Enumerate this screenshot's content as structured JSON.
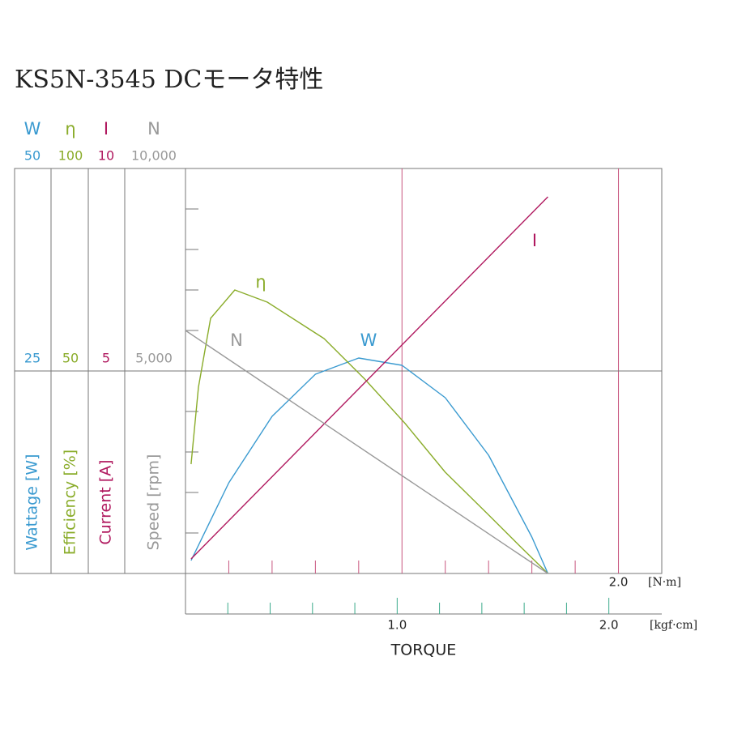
{
  "chart_data": {
    "type": "line",
    "title": "KS5N-3545 DCモータ特性",
    "xlabel": "TORQUE",
    "x_axes": [
      {
        "unit": "[N·m]",
        "color": "#c8557e",
        "xlim": [
          0,
          2.2
        ],
        "xticks": [
          {
            "value": 2,
            "label": "2.0"
          }
        ],
        "minor_xticks": [
          0.2,
          0.4,
          0.6,
          0.8,
          1.2,
          1.4,
          1.6,
          1.8
        ],
        "grid": [
          1,
          2
        ]
      },
      {
        "unit": "[kgf·cm]",
        "color": "#3aaa8a",
        "xlim": [
          0,
          2.25
        ],
        "xticks": [
          {
            "value": 1,
            "label": "1.0"
          },
          {
            "value": 2,
            "label": "2.0"
          }
        ],
        "minor_xticks": [
          0.2,
          0.4,
          0.6,
          0.8,
          1.2,
          1.4,
          1.6,
          1.8
        ]
      }
    ],
    "series": [
      {
        "name": "W",
        "label": "Wattage [W]",
        "color": "#3a9ad0",
        "ylim": [
          0,
          50
        ],
        "yticks": [
          25,
          50
        ],
        "minor_yticks": [
          5,
          10,
          15,
          20,
          30,
          35,
          40,
          45
        ],
        "x": [
          0.026,
          0.2,
          0.4,
          0.6,
          0.8,
          1.0,
          1.2,
          1.4,
          1.6,
          1.674
        ],
        "values": [
          1.6,
          11.2,
          19.4,
          24.6,
          26.6,
          25.7,
          21.7,
          14.6,
          4.5,
          0
        ]
      },
      {
        "name": "η",
        "label": "Efficiency [%]",
        "color": "#8aac2a",
        "ylim": [
          0,
          100
        ],
        "yticks": [
          50,
          100
        ],
        "x": [
          0.026,
          0.06,
          0.116,
          0.228,
          0.378,
          0.64,
          0.828,
          1.015,
          1.2,
          1.39,
          1.54,
          1.674
        ],
        "values": [
          27,
          46,
          63,
          70,
          67,
          58,
          48,
          37,
          25,
          15,
          7,
          0
        ]
      },
      {
        "name": "I",
        "label": "Current [A]",
        "color": "#b0195f",
        "ylim": [
          0,
          10
        ],
        "yticks": [
          5,
          10
        ],
        "x": [
          0.026,
          1.674
        ],
        "values": [
          0.36,
          9.3
        ]
      },
      {
        "name": "N",
        "label": "Speed [rpm]",
        "color": "#999999",
        "ylim": [
          0,
          10000
        ],
        "yticks": [
          {
            "value": 5000,
            "label": "5,000"
          },
          {
            "value": 10000,
            "label": "10,000"
          }
        ],
        "x": [
          0,
          1.674
        ],
        "values": [
          6000,
          0
        ]
      }
    ]
  }
}
